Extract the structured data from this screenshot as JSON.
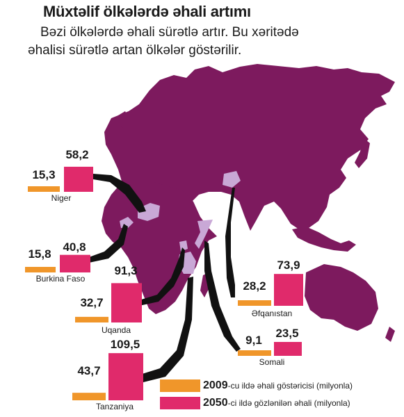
{
  "title": "Müxtəlif ölkələrdə əhali artımı",
  "subtitle": {
    "line1": "Bəzi ölkələrdə əhali sürətlə artır. Bu xəritədə",
    "line2": "əhalisi sürətlə artan ölkələr göstərilir."
  },
  "colors": {
    "map_land": "#7d1a5e",
    "highlight_country": "#c9a8d6",
    "value_2009": "#f0962a",
    "value_2050": "#e02a6b",
    "connector": "#111111"
  },
  "countries": [
    {
      "name": "Niger",
      "v2009": "15,3",
      "v2050": "58,2"
    },
    {
      "name": "Burkina Faso",
      "v2009": "15,8",
      "v2050": "40,8"
    },
    {
      "name": "Uqanda",
      "v2009": "32,7",
      "v2050": "91,3"
    },
    {
      "name": "Tanzaniya",
      "v2009": "43,7",
      "v2050": "109,5"
    },
    {
      "name": "Əfqanıstan",
      "v2009": "28,2",
      "v2050": "73,9"
    },
    {
      "name": "Somali",
      "v2009": "9,1",
      "v2050": "23,5"
    }
  ],
  "legend": {
    "item2009": {
      "year": "2009",
      "text": "-cu ildə əhali göstəricisi (milyonla)"
    },
    "item2050": {
      "year": "2050",
      "text": "-ci ildə gözlənilən əhali (milyonla)"
    }
  }
}
